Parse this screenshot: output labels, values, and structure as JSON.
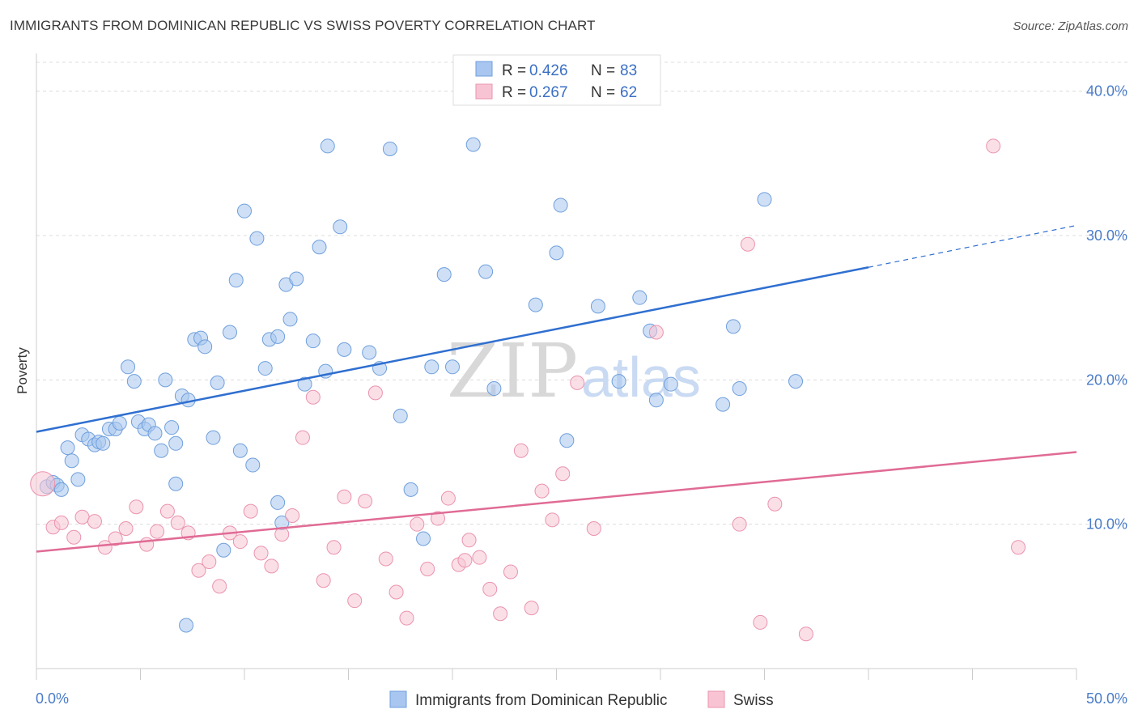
{
  "title": "IMMIGRANTS FROM DOMINICAN REPUBLIC VS SWISS POVERTY CORRELATION CHART",
  "source": "Source: ZipAtlas.com",
  "watermark": {
    "zip": "ZIP",
    "atlas": "atlas"
  },
  "legend": {
    "r_label": "R =",
    "n_label": "N =",
    "rows": [
      {
        "r": "0.426",
        "n": "83",
        "color": "#a8c6ef",
        "stroke": "#6f9fdc"
      },
      {
        "r": "0.267",
        "n": "62",
        "color": "#f8c4d4",
        "stroke": "#ea93ae"
      }
    ]
  },
  "chart_data": {
    "type": "scatter",
    "title": "IMMIGRANTS FROM DOMINICAN REPUBLIC VS SWISS POVERTY CORRELATION CHART",
    "xlabel": "",
    "ylabel": "Poverty",
    "xlim": [
      0,
      50
    ],
    "ylim": [
      0,
      42
    ],
    "x_tick_labels": [
      "0.0%",
      "50.0%"
    ],
    "y_ticks": [
      10,
      20,
      30,
      40
    ],
    "y_tick_labels": [
      "10.0%",
      "20.0%",
      "30.0%",
      "40.0%"
    ],
    "grid": true,
    "legend_position": "top-center",
    "series": [
      {
        "name": "Immigrants from Dominican Republic",
        "color": "#a8c6ef",
        "stroke": "#6f9fdc",
        "line_color": "#2f6fd0",
        "trend": {
          "x0": 0,
          "y0": 16.4,
          "x1": 40,
          "y1": 27.8,
          "dash_to_x": 50,
          "dash_to_y": 30.7
        },
        "points": [
          [
            0.5,
            12.6
          ],
          [
            0.8,
            12.9
          ],
          [
            1.0,
            12.7
          ],
          [
            1.2,
            12.4
          ],
          [
            1.5,
            15.3
          ],
          [
            1.7,
            14.4
          ],
          [
            2.0,
            13.1
          ],
          [
            2.2,
            16.2
          ],
          [
            2.5,
            15.9
          ],
          [
            2.8,
            15.5
          ],
          [
            3.0,
            15.7
          ],
          [
            3.5,
            16.6
          ],
          [
            3.8,
            16.6
          ],
          [
            4.0,
            17.0
          ],
          [
            4.4,
            20.9
          ],
          [
            4.7,
            19.9
          ],
          [
            4.9,
            17.1
          ],
          [
            5.2,
            16.6
          ],
          [
            5.4,
            16.9
          ],
          [
            5.7,
            16.3
          ],
          [
            6.0,
            15.1
          ],
          [
            6.2,
            20.0
          ],
          [
            6.5,
            16.7
          ],
          [
            6.7,
            15.6
          ],
          [
            7.0,
            18.9
          ],
          [
            7.3,
            18.6
          ],
          [
            7.6,
            22.8
          ],
          [
            7.9,
            22.9
          ],
          [
            8.1,
            22.3
          ],
          [
            8.5,
            16.0
          ],
          [
            8.7,
            19.8
          ],
          [
            9.0,
            8.2
          ],
          [
            9.3,
            23.3
          ],
          [
            9.6,
            26.9
          ],
          [
            9.8,
            15.1
          ],
          [
            10.0,
            31.7
          ],
          [
            10.4,
            14.1
          ],
          [
            10.6,
            29.8
          ],
          [
            11.0,
            20.8
          ],
          [
            11.2,
            22.8
          ],
          [
            11.6,
            23.0
          ],
          [
            12.0,
            26.6
          ],
          [
            12.2,
            24.2
          ],
          [
            12.5,
            27.0
          ],
          [
            12.9,
            19.7
          ],
          [
            13.3,
            22.7
          ],
          [
            13.6,
            29.2
          ],
          [
            13.9,
            20.6
          ],
          [
            14.0,
            36.2
          ],
          [
            14.6,
            30.6
          ],
          [
            14.8,
            22.1
          ],
          [
            16.0,
            21.9
          ],
          [
            16.5,
            20.8
          ],
          [
            17.0,
            36.0
          ],
          [
            17.5,
            17.5
          ],
          [
            18.0,
            12.4
          ],
          [
            18.6,
            9.0
          ],
          [
            19.0,
            20.9
          ],
          [
            19.6,
            27.3
          ],
          [
            20.0,
            20.9
          ],
          [
            21.0,
            36.3
          ],
          [
            21.6,
            27.5
          ],
          [
            22.0,
            19.4
          ],
          [
            24.0,
            25.2
          ],
          [
            25.0,
            28.8
          ],
          [
            25.2,
            32.1
          ],
          [
            25.5,
            15.8
          ],
          [
            27.0,
            25.1
          ],
          [
            28.0,
            19.9
          ],
          [
            29.0,
            25.7
          ],
          [
            29.5,
            23.4
          ],
          [
            29.8,
            18.6
          ],
          [
            30.5,
            19.7
          ],
          [
            33.0,
            18.3
          ],
          [
            33.5,
            23.7
          ],
          [
            33.8,
            19.4
          ],
          [
            35.0,
            32.5
          ],
          [
            36.5,
            19.9
          ],
          [
            11.6,
            11.5
          ],
          [
            11.8,
            10.1
          ],
          [
            7.2,
            3.0
          ],
          [
            6.7,
            12.8
          ],
          [
            3.2,
            15.6
          ]
        ]
      },
      {
        "name": "Swiss",
        "color": "#f8c4d4",
        "stroke": "#ea93ae",
        "line_color": "#e06b95",
        "trend": {
          "x0": 0,
          "y0": 8.1,
          "x1": 50,
          "y1": 15.0
        },
        "points": [
          [
            0.3,
            12.8
          ],
          [
            0.8,
            9.8
          ],
          [
            1.2,
            10.1
          ],
          [
            1.8,
            9.1
          ],
          [
            2.2,
            10.5
          ],
          [
            2.8,
            10.2
          ],
          [
            3.3,
            8.4
          ],
          [
            3.8,
            9.0
          ],
          [
            4.3,
            9.7
          ],
          [
            4.8,
            11.2
          ],
          [
            5.3,
            8.6
          ],
          [
            5.8,
            9.5
          ],
          [
            6.3,
            10.9
          ],
          [
            6.8,
            10.1
          ],
          [
            7.3,
            9.4
          ],
          [
            7.8,
            6.8
          ],
          [
            8.3,
            7.4
          ],
          [
            8.8,
            5.7
          ],
          [
            9.3,
            9.4
          ],
          [
            9.8,
            8.8
          ],
          [
            10.3,
            10.9
          ],
          [
            10.8,
            8.0
          ],
          [
            11.3,
            7.1
          ],
          [
            11.8,
            9.3
          ],
          [
            12.3,
            10.6
          ],
          [
            12.8,
            16.0
          ],
          [
            13.3,
            18.8
          ],
          [
            13.8,
            6.1
          ],
          [
            14.3,
            8.4
          ],
          [
            14.8,
            11.9
          ],
          [
            15.3,
            4.7
          ],
          [
            15.8,
            11.6
          ],
          [
            16.3,
            19.1
          ],
          [
            16.8,
            7.6
          ],
          [
            17.3,
            5.3
          ],
          [
            17.8,
            3.5
          ],
          [
            18.3,
            10.0
          ],
          [
            18.8,
            6.9
          ],
          [
            19.3,
            10.4
          ],
          [
            19.8,
            11.8
          ],
          [
            20.3,
            7.2
          ],
          [
            20.8,
            8.9
          ],
          [
            21.3,
            7.7
          ],
          [
            21.8,
            5.5
          ],
          [
            22.3,
            3.8
          ],
          [
            22.8,
            6.7
          ],
          [
            23.3,
            15.1
          ],
          [
            23.8,
            4.2
          ],
          [
            24.3,
            12.3
          ],
          [
            24.8,
            10.3
          ],
          [
            25.3,
            13.5
          ],
          [
            26.0,
            19.8
          ],
          [
            26.8,
            9.7
          ],
          [
            29.8,
            23.3
          ],
          [
            33.8,
            10.0
          ],
          [
            34.2,
            29.4
          ],
          [
            34.8,
            3.2
          ],
          [
            35.5,
            11.4
          ],
          [
            37.0,
            2.4
          ],
          [
            46.0,
            36.2
          ],
          [
            47.2,
            8.4
          ],
          [
            20.6,
            7.5
          ]
        ]
      }
    ]
  },
  "bottom_legend": [
    {
      "label": "Immigrants from Dominican Republic",
      "color": "#a8c6ef",
      "stroke": "#6f9fdc"
    },
    {
      "label": "Swiss",
      "color": "#f8c4d4",
      "stroke": "#ea93ae"
    }
  ]
}
